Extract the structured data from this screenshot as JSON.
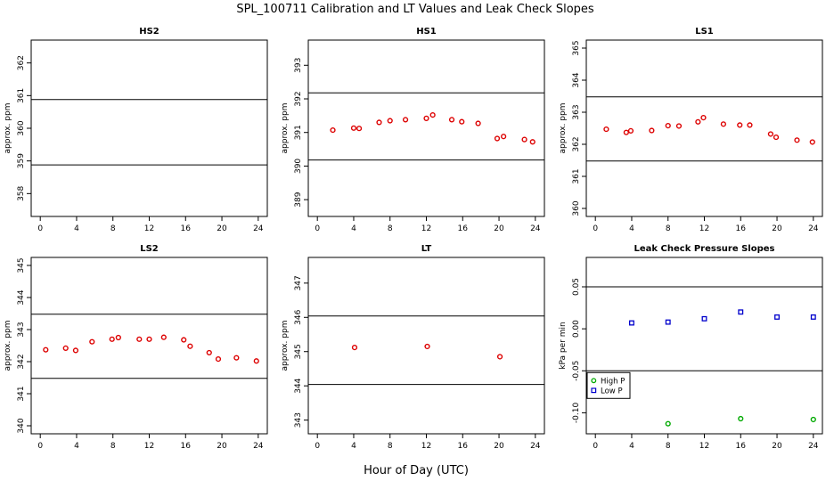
{
  "figure": {
    "title": "SPL_100711  Calibration and LT Values and Leak Check Slopes",
    "xlabel": "Hour of Day (UTC)"
  },
  "chart_data": [
    {
      "id": "hs2",
      "type": "scatter",
      "title": "HS2",
      "ylabel": "approx. ppm",
      "xlim": [
        -1,
        25
      ],
      "ylim": [
        357.3,
        362.7
      ],
      "xticks": [
        0,
        4,
        8,
        12,
        16,
        20,
        24
      ],
      "xtick_labels": [
        "0",
        "4",
        "8",
        "12",
        "16",
        "20",
        "24"
      ],
      "yticks": [
        358,
        359,
        360,
        361,
        362
      ],
      "ytick_labels": [
        "358",
        "359",
        "360",
        "361",
        "362"
      ],
      "hlines": [
        360.88,
        358.88
      ],
      "series": [
        {
          "name": "HS2",
          "color": "#dd0000",
          "marker": "circle",
          "x": [],
          "y": []
        }
      ]
    },
    {
      "id": "hs1",
      "type": "scatter",
      "title": "HS1",
      "ylabel": "approx. ppm",
      "xlim": [
        -1,
        25
      ],
      "ylim": [
        388.5,
        393.75
      ],
      "xticks": [
        0,
        4,
        8,
        12,
        16,
        20,
        24
      ],
      "xtick_labels": [
        "0",
        "4",
        "8",
        "12",
        "16",
        "20",
        "24"
      ],
      "yticks": [
        389,
        390,
        391,
        392,
        393
      ],
      "ytick_labels": [
        "389",
        "390",
        "391",
        "392",
        "393"
      ],
      "hlines": [
        392.18,
        390.18
      ],
      "series": [
        {
          "name": "HS1",
          "color": "#dd0000",
          "marker": "circle",
          "x": [
            1.7,
            4.0,
            4.6,
            6.8,
            8.0,
            9.7,
            12.0,
            12.7,
            14.8,
            15.9,
            17.7,
            19.8,
            20.5,
            22.8,
            23.7
          ],
          "y": [
            391.07,
            391.13,
            391.12,
            391.3,
            391.35,
            391.38,
            391.42,
            391.52,
            391.38,
            391.32,
            391.27,
            390.82,
            390.88,
            390.79,
            390.72
          ]
        }
      ]
    },
    {
      "id": "ls1",
      "type": "scatter",
      "title": "LS1",
      "ylabel": "approx. ppm",
      "xlim": [
        -1,
        25
      ],
      "ylim": [
        359.75,
        365.25
      ],
      "xticks": [
        0,
        4,
        8,
        12,
        16,
        20,
        24
      ],
      "xtick_labels": [
        "0",
        "4",
        "8",
        "12",
        "16",
        "20",
        "24"
      ],
      "yticks": [
        360,
        361,
        362,
        363,
        364,
        365
      ],
      "ytick_labels": [
        "360",
        "361",
        "362",
        "363",
        "364",
        "365"
      ],
      "hlines": [
        363.48,
        361.48
      ],
      "series": [
        {
          "name": "LS1",
          "color": "#dd0000",
          "marker": "circle",
          "x": [
            1.2,
            3.4,
            3.9,
            6.2,
            8.0,
            9.2,
            11.3,
            11.9,
            14.1,
            15.9,
            17.0,
            19.3,
            19.9,
            22.2,
            23.9
          ],
          "y": [
            362.47,
            362.37,
            362.42,
            362.43,
            362.58,
            362.57,
            362.7,
            362.83,
            362.63,
            362.6,
            362.6,
            362.32,
            362.22,
            362.13,
            362.07
          ]
        }
      ]
    },
    {
      "id": "ls2",
      "type": "scatter",
      "title": "LS2",
      "ylabel": "approx. ppm",
      "xlim": [
        -1,
        25
      ],
      "ylim": [
        339.75,
        345.25
      ],
      "xticks": [
        0,
        4,
        8,
        12,
        16,
        20,
        24
      ],
      "xtick_labels": [
        "0",
        "4",
        "8",
        "12",
        "16",
        "20",
        "24"
      ],
      "yticks": [
        340,
        341,
        342,
        343,
        344,
        345
      ],
      "ytick_labels": [
        "340",
        "341",
        "342",
        "343",
        "344",
        "345"
      ],
      "hlines": [
        343.48,
        341.48
      ],
      "series": [
        {
          "name": "LS2",
          "color": "#dd0000",
          "marker": "circle",
          "x": [
            0.6,
            2.8,
            3.9,
            5.7,
            7.9,
            8.6,
            10.9,
            12.0,
            13.6,
            15.8,
            16.5,
            18.6,
            19.6,
            21.6,
            23.8
          ],
          "y": [
            342.37,
            342.42,
            342.35,
            342.62,
            342.7,
            342.75,
            342.7,
            342.7,
            342.76,
            342.68,
            342.48,
            342.28,
            342.08,
            342.12,
            342.02
          ]
        }
      ]
    },
    {
      "id": "lt",
      "type": "scatter",
      "title": "LT",
      "ylabel": "approx. ppm",
      "xlim": [
        -1,
        25
      ],
      "ylim": [
        342.6,
        347.75
      ],
      "xticks": [
        0,
        4,
        8,
        12,
        16,
        20,
        24
      ],
      "xtick_labels": [
        "0",
        "4",
        "8",
        "12",
        "16",
        "20",
        "24"
      ],
      "yticks": [
        343,
        344,
        345,
        346,
        347
      ],
      "ytick_labels": [
        "343",
        "344",
        "345",
        "346",
        "347"
      ],
      "hlines": [
        346.04,
        344.04
      ],
      "series": [
        {
          "name": "LT",
          "color": "#dd0000",
          "marker": "circle",
          "x": [
            4.1,
            12.1,
            20.1
          ],
          "y": [
            345.12,
            345.15,
            344.85
          ]
        }
      ]
    },
    {
      "id": "leak",
      "type": "scatter",
      "title": "Leak Check Pressure Slopes",
      "ylabel": "kPa per min",
      "xlim": [
        -1,
        25
      ],
      "ylim": [
        -0.125,
        0.085
      ],
      "xticks": [
        0,
        4,
        8,
        12,
        16,
        20,
        24
      ],
      "xtick_labels": [
        "0",
        "4",
        "8",
        "12",
        "16",
        "20",
        "24"
      ],
      "yticks": [
        -0.1,
        -0.05,
        0.0,
        0.05
      ],
      "ytick_labels": [
        "-0.10",
        "-0.05",
        "0.00",
        "0.05"
      ],
      "hlines": [
        0.05,
        -0.05
      ],
      "legend": "bottom-left",
      "series": [
        {
          "name": "High P",
          "color": "#00aa00",
          "marker": "circle",
          "x": [
            8,
            16,
            24
          ],
          "y": [
            -0.113,
            -0.107,
            -0.108
          ]
        },
        {
          "name": "Low P",
          "color": "#0000cc",
          "marker": "square",
          "x": [
            4,
            8,
            12,
            16,
            20,
            24
          ],
          "y": [
            0.007,
            0.008,
            0.012,
            0.02,
            0.014,
            0.014
          ]
        }
      ]
    }
  ]
}
